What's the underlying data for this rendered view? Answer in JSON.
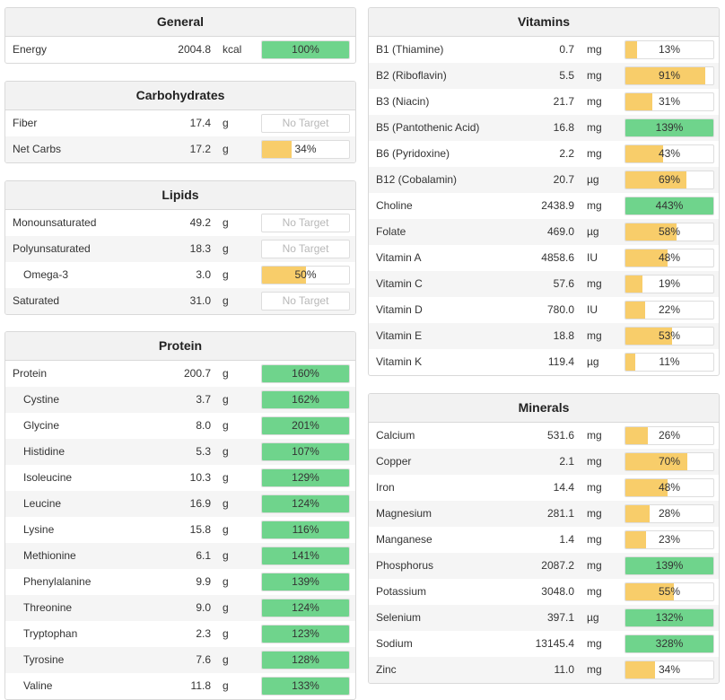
{
  "colors": {
    "green": "#6fd48c",
    "yellow": "#f8cd6a"
  },
  "panels": [
    {
      "id": "general",
      "title": "General",
      "rows": [
        {
          "name": "Energy",
          "amount": "2004.8",
          "unit": "kcal",
          "pct": 100,
          "label": "100%"
        }
      ]
    },
    {
      "id": "carbohydrates",
      "title": "Carbohydrates",
      "rows": [
        {
          "name": "Fiber",
          "amount": "17.4",
          "unit": "g",
          "pct": null,
          "label": "No Target"
        },
        {
          "name": "Net Carbs",
          "amount": "17.2",
          "unit": "g",
          "pct": 34,
          "label": "34%"
        }
      ]
    },
    {
      "id": "lipids",
      "title": "Lipids",
      "rows": [
        {
          "name": "Monounsaturated",
          "amount": "49.2",
          "unit": "g",
          "pct": null,
          "label": "No Target"
        },
        {
          "name": "Polyunsaturated",
          "amount": "18.3",
          "unit": "g",
          "pct": null,
          "label": "No Target"
        },
        {
          "name": "Omega-3",
          "amount": "3.0",
          "unit": "g",
          "pct": 50,
          "label": "50%",
          "sub": true
        },
        {
          "name": "Saturated",
          "amount": "31.0",
          "unit": "g",
          "pct": null,
          "label": "No Target"
        }
      ]
    },
    {
      "id": "protein",
      "title": "Protein",
      "rows": [
        {
          "name": "Protein",
          "amount": "200.7",
          "unit": "g",
          "pct": 160,
          "label": "160%"
        },
        {
          "name": "Cystine",
          "amount": "3.7",
          "unit": "g",
          "pct": 162,
          "label": "162%",
          "sub": true
        },
        {
          "name": "Glycine",
          "amount": "8.0",
          "unit": "g",
          "pct": 201,
          "label": "201%",
          "sub": true
        },
        {
          "name": "Histidine",
          "amount": "5.3",
          "unit": "g",
          "pct": 107,
          "label": "107%",
          "sub": true
        },
        {
          "name": "Isoleucine",
          "amount": "10.3",
          "unit": "g",
          "pct": 129,
          "label": "129%",
          "sub": true
        },
        {
          "name": "Leucine",
          "amount": "16.9",
          "unit": "g",
          "pct": 124,
          "label": "124%",
          "sub": true
        },
        {
          "name": "Lysine",
          "amount": "15.8",
          "unit": "g",
          "pct": 116,
          "label": "116%",
          "sub": true
        },
        {
          "name": "Methionine",
          "amount": "6.1",
          "unit": "g",
          "pct": 141,
          "label": "141%",
          "sub": true
        },
        {
          "name": "Phenylalanine",
          "amount": "9.9",
          "unit": "g",
          "pct": 139,
          "label": "139%",
          "sub": true
        },
        {
          "name": "Threonine",
          "amount": "9.0",
          "unit": "g",
          "pct": 124,
          "label": "124%",
          "sub": true
        },
        {
          "name": "Tryptophan",
          "amount": "2.3",
          "unit": "g",
          "pct": 123,
          "label": "123%",
          "sub": true
        },
        {
          "name": "Tyrosine",
          "amount": "7.6",
          "unit": "g",
          "pct": 128,
          "label": "128%",
          "sub": true
        },
        {
          "name": "Valine",
          "amount": "11.8",
          "unit": "g",
          "pct": 133,
          "label": "133%",
          "sub": true
        }
      ]
    },
    {
      "id": "vitamins",
      "title": "Vitamins",
      "rows": [
        {
          "name": "B1 (Thiamine)",
          "amount": "0.7",
          "unit": "mg",
          "pct": 13,
          "label": "13%"
        },
        {
          "name": "B2 (Riboflavin)",
          "amount": "5.5",
          "unit": "mg",
          "pct": 91,
          "label": "91%"
        },
        {
          "name": "B3 (Niacin)",
          "amount": "21.7",
          "unit": "mg",
          "pct": 31,
          "label": "31%"
        },
        {
          "name": "B5 (Pantothenic Acid)",
          "amount": "16.8",
          "unit": "mg",
          "pct": 139,
          "label": "139%"
        },
        {
          "name": "B6 (Pyridoxine)",
          "amount": "2.2",
          "unit": "mg",
          "pct": 43,
          "label": "43%"
        },
        {
          "name": "B12 (Cobalamin)",
          "amount": "20.7",
          "unit": "µg",
          "pct": 69,
          "label": "69%"
        },
        {
          "name": "Choline",
          "amount": "2438.9",
          "unit": "mg",
          "pct": 443,
          "label": "443%"
        },
        {
          "name": "Folate",
          "amount": "469.0",
          "unit": "µg",
          "pct": 58,
          "label": "58%"
        },
        {
          "name": "Vitamin A",
          "amount": "4858.6",
          "unit": "IU",
          "pct": 48,
          "label": "48%"
        },
        {
          "name": "Vitamin C",
          "amount": "57.6",
          "unit": "mg",
          "pct": 19,
          "label": "19%"
        },
        {
          "name": "Vitamin D",
          "amount": "780.0",
          "unit": "IU",
          "pct": 22,
          "label": "22%"
        },
        {
          "name": "Vitamin E",
          "amount": "18.8",
          "unit": "mg",
          "pct": 53,
          "label": "53%"
        },
        {
          "name": "Vitamin K",
          "amount": "119.4",
          "unit": "µg",
          "pct": 11,
          "label": "11%"
        }
      ]
    },
    {
      "id": "minerals",
      "title": "Minerals",
      "rows": [
        {
          "name": "Calcium",
          "amount": "531.6",
          "unit": "mg",
          "pct": 26,
          "label": "26%"
        },
        {
          "name": "Copper",
          "amount": "2.1",
          "unit": "mg",
          "pct": 70,
          "label": "70%"
        },
        {
          "name": "Iron",
          "amount": "14.4",
          "unit": "mg",
          "pct": 48,
          "label": "48%"
        },
        {
          "name": "Magnesium",
          "amount": "281.1",
          "unit": "mg",
          "pct": 28,
          "label": "28%"
        },
        {
          "name": "Manganese",
          "amount": "1.4",
          "unit": "mg",
          "pct": 23,
          "label": "23%"
        },
        {
          "name": "Phosphorus",
          "amount": "2087.2",
          "unit": "mg",
          "pct": 139,
          "label": "139%"
        },
        {
          "name": "Potassium",
          "amount": "3048.0",
          "unit": "mg",
          "pct": 55,
          "label": "55%"
        },
        {
          "name": "Selenium",
          "amount": "397.1",
          "unit": "µg",
          "pct": 132,
          "label": "132%"
        },
        {
          "name": "Sodium",
          "amount": "13145.4",
          "unit": "mg",
          "pct": 328,
          "label": "328%"
        },
        {
          "name": "Zinc",
          "amount": "11.0",
          "unit": "mg",
          "pct": 34,
          "label": "34%"
        }
      ]
    }
  ]
}
